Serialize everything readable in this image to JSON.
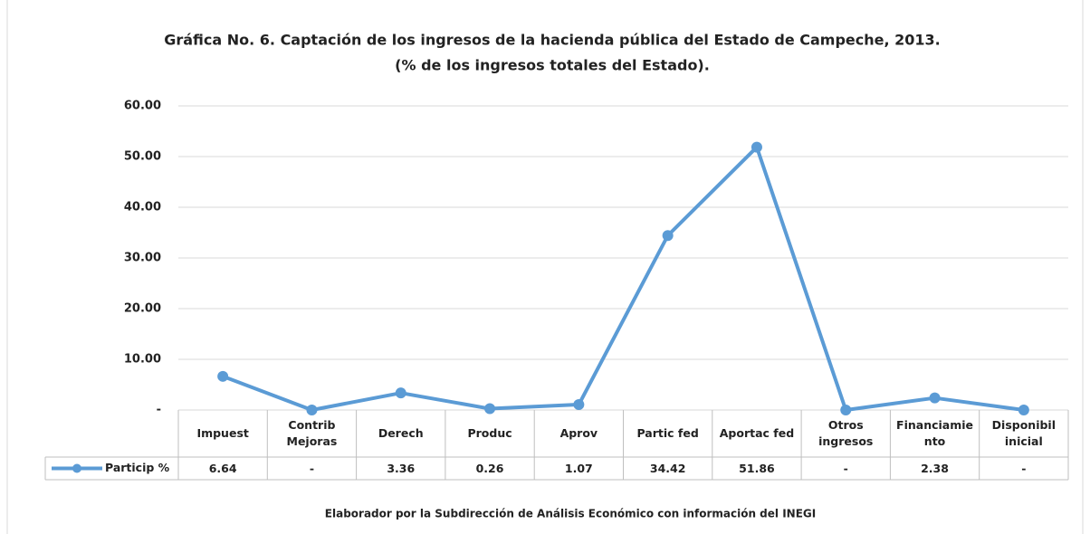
{
  "chart_data": {
    "type": "line",
    "title": "Gráfica No. 6. Captación de los ingresos de la hacienda pública del Estado de  Campeche, 2013.",
    "subtitle": "(% de los ingresos totales del Estado).",
    "footer": "Elaborador por la Subdirección de Análisis Económico con información del INEGI",
    "categories": [
      "Impuest",
      "Contrib Mejoras",
      "Derech",
      "Produc",
      "Aprov",
      "Partic fed",
      "Aportac fed",
      "Otros ingresos",
      "Financiamiento",
      "Disponibil inicial"
    ],
    "series": [
      {
        "name": "Particip %",
        "color": "#5b9bd5",
        "values": [
          6.64,
          0,
          3.36,
          0.26,
          1.07,
          34.42,
          51.86,
          0,
          2.38,
          0
        ],
        "value_labels": [
          "6.64",
          "-",
          "3.36",
          "0.26",
          "1.07",
          "34.42",
          "51.86",
          "-",
          "2.38",
          "-"
        ]
      }
    ],
    "ylim": [
      0,
      60
    ],
    "yticks": [
      {
        "value": 0,
        "label": "-"
      },
      {
        "value": 10,
        "label": "10.00"
      },
      {
        "value": 20,
        "label": "20.00"
      },
      {
        "value": 30,
        "label": "30.00"
      },
      {
        "value": 40,
        "label": "40.00"
      },
      {
        "value": 50,
        "label": "50.00"
      },
      {
        "value": 60,
        "label": "60.00"
      }
    ],
    "grid": true
  }
}
